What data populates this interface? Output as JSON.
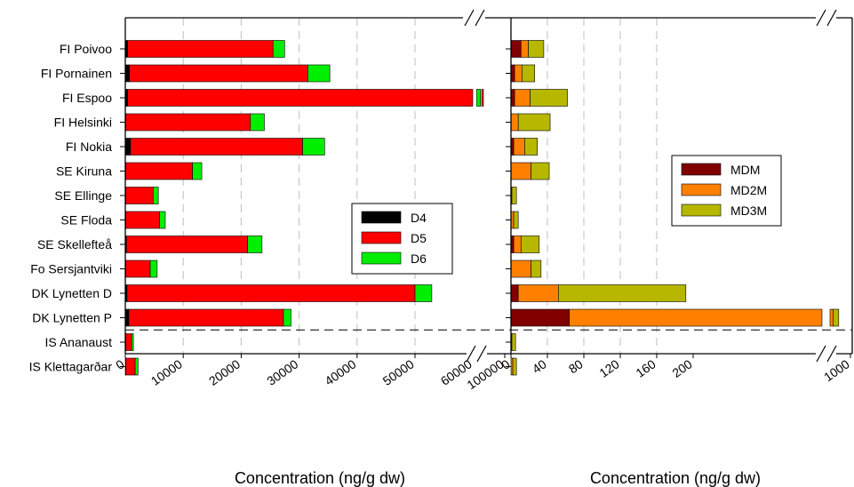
{
  "chart_data": [
    {
      "type": "bar",
      "orientation": "horizontal",
      "stacked": true,
      "axis_break": true,
      "xlabel": "Concentration (ng/g dw)",
      "xticks": [
        "0",
        "10000",
        "20000",
        "30000",
        "40000",
        "50000",
        "60000",
        "100000"
      ],
      "categories": [
        "FI Poivoo",
        "FI Pornainen",
        "FI Espoo",
        "FI Helsinki",
        "FI Nokia",
        "SE Kiruna",
        "SE Ellinge",
        "SE Floda",
        "SE Skellefteå",
        "Fo Sersjantviki",
        "DK Lynetten D",
        "DK  Lynetten P",
        "IS Ananaust",
        "IS Klettagarðar"
      ],
      "series": [
        {
          "name": "D4",
          "color": "#000000",
          "values": [
            400,
            700,
            400,
            100,
            900,
            100,
            100,
            100,
            200,
            100,
            300,
            600,
            100,
            100
          ]
        },
        {
          "name": "D5",
          "color": "#ff0000",
          "values": [
            25100,
            30800,
            85000,
            21500,
            29700,
            11500,
            4700,
            5800,
            20900,
            4200,
            49700,
            26700,
            1000,
            1600
          ]
        },
        {
          "name": "D6",
          "color": "#00ee00",
          "values": [
            2000,
            3800,
            2000,
            2400,
            3800,
            1600,
            900,
            1000,
            2500,
            1200,
            2900,
            1300,
            300,
            500
          ]
        }
      ],
      "legend": "center"
    },
    {
      "type": "bar",
      "orientation": "horizontal",
      "stacked": true,
      "axis_break": true,
      "xlabel": "Concentration (ng/g dw)",
      "xticks": [
        "0",
        "40",
        "80",
        "120",
        "160",
        "200",
        "1000"
      ],
      "categories": [
        "FI Poivoo",
        "FI Pornainen",
        "FI Espoo",
        "FI Helsinki",
        "FI Nokia",
        "SE Kiruna",
        "SE Ellinge",
        "SE Floda",
        "SE Skellefteå",
        "Fo Sersjantviki",
        "DK Lynetten D",
        "DK  Lynetten P",
        "IS Ananaust",
        "IS Klettagarðar"
      ],
      "series": [
        {
          "name": "MDM",
          "color": "#800000",
          "values": [
            11,
            4,
            4,
            0,
            3,
            0,
            0,
            0,
            3,
            0,
            8,
            64,
            0,
            0
          ]
        },
        {
          "name": "MD2M",
          "color": "#ff8000",
          "values": [
            8,
            8,
            17,
            8,
            12,
            22,
            1,
            3,
            8,
            22,
            44,
            300,
            1,
            2
          ]
        },
        {
          "name": "MD3M",
          "color": "#b7b700",
          "values": [
            17,
            14,
            41,
            35,
            14,
            20,
            5,
            5,
            20,
            11,
            140,
            200,
            4,
            4
          ]
        }
      ],
      "legend": "top-right"
    }
  ]
}
